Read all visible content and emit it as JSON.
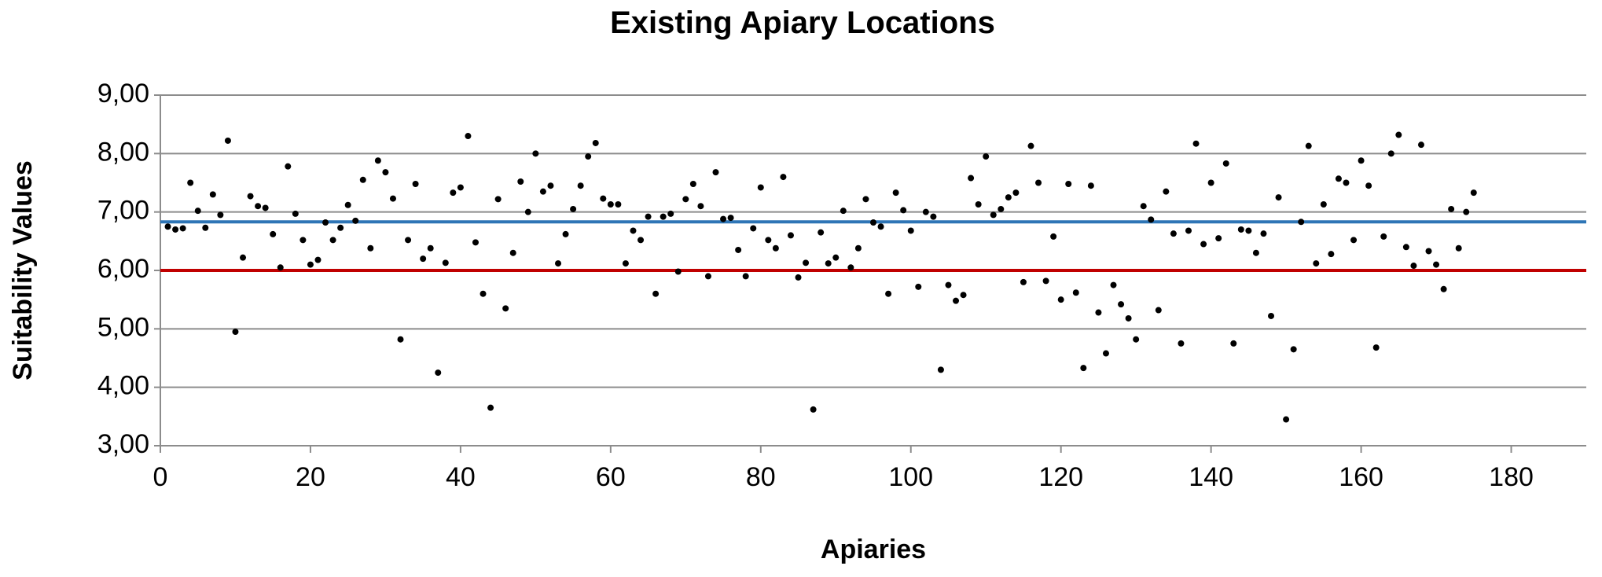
{
  "chart_data": {
    "type": "scatter",
    "title": "Existing Apiary Locations",
    "x_label": "Apiaries",
    "y_label": "Suitability Values",
    "color": "#000000",
    "grid": true,
    "xlim": [
      0,
      190
    ],
    "ylim": [
      3,
      9
    ],
    "xticks": [
      0,
      20,
      40,
      60,
      80,
      100,
      120,
      140,
      160,
      180
    ],
    "yticks": [
      {
        "value": 3,
        "label": "3,00"
      },
      {
        "value": 4,
        "label": "4,00"
      },
      {
        "value": 5,
        "label": "5,00"
      },
      {
        "value": 6,
        "label": "6,00"
      },
      {
        "value": 7,
        "label": "7,00"
      },
      {
        "value": 8,
        "label": "8,00"
      },
      {
        "value": 9,
        "label": "9,00"
      }
    ],
    "reference_lines": [
      {
        "value": 6.83,
        "color": "#2e75b6"
      },
      {
        "value": 6.0,
        "color": "#c00000"
      }
    ],
    "x": [
      1,
      2,
      3,
      4,
      5,
      6,
      7,
      8,
      9,
      10,
      11,
      12,
      13,
      14,
      15,
      16,
      17,
      18,
      19,
      20,
      21,
      22,
      23,
      24,
      25,
      26,
      27,
      28,
      29,
      30,
      31,
      32,
      33,
      34,
      35,
      36,
      37,
      38,
      39,
      40,
      41,
      42,
      43,
      44,
      45,
      46,
      47,
      48,
      49,
      50,
      51,
      52,
      53,
      54,
      55,
      56,
      57,
      58,
      59,
      60,
      61,
      62,
      63,
      64,
      65,
      66,
      67,
      68,
      69,
      70,
      71,
      72,
      73,
      74,
      75,
      76,
      77,
      78,
      79,
      80,
      81,
      82,
      83,
      84,
      85,
      86,
      87,
      88,
      89,
      90,
      91,
      92,
      93,
      94,
      95,
      96,
      97,
      98,
      99,
      100,
      101,
      102,
      103,
      104,
      105,
      106,
      107,
      108,
      109,
      110,
      111,
      112,
      113,
      114,
      115,
      116,
      117,
      118,
      119,
      120,
      121,
      122,
      123,
      124,
      125,
      126,
      127,
      128,
      129,
      130,
      131,
      132,
      133,
      134,
      135,
      136,
      137,
      138,
      139,
      140,
      141,
      142,
      143,
      144,
      145,
      146,
      147,
      148,
      149,
      150,
      151,
      152,
      153,
      154,
      155,
      156,
      157,
      158,
      159,
      160,
      161,
      162,
      163,
      164,
      165,
      166,
      167,
      168,
      169,
      170,
      171,
      172,
      173,
      174,
      175
    ],
    "values": [
      6.75,
      6.7,
      6.72,
      7.5,
      7.02,
      6.73,
      7.3,
      6.95,
      8.22,
      4.95,
      6.22,
      7.27,
      7.1,
      7.07,
      6.62,
      6.05,
      7.78,
      6.97,
      6.52,
      6.1,
      6.18,
      6.82,
      6.52,
      6.73,
      7.12,
      6.85,
      7.55,
      6.38,
      7.88,
      7.68,
      7.23,
      4.82,
      6.52,
      7.48,
      6.2,
      6.38,
      4.25,
      6.13,
      7.33,
      7.42,
      8.3,
      6.48,
      5.6,
      3.65,
      7.22,
      5.35,
      6.3,
      7.52,
      7.0,
      8.0,
      7.35,
      7.45,
      6.12,
      6.62,
      7.05,
      7.45,
      7.95,
      8.18,
      7.23,
      7.13,
      7.13,
      6.12,
      6.68,
      6.52,
      6.92,
      5.6,
      6.92,
      6.97,
      5.98,
      7.22,
      7.48,
      7.1,
      5.9,
      7.68,
      6.88,
      6.9,
      6.35,
      5.9,
      6.72,
      7.42,
      6.52,
      6.38,
      7.6,
      6.6,
      5.88,
      6.13,
      3.62,
      6.65,
      6.12,
      6.22,
      7.02,
      6.05,
      6.38,
      7.22,
      6.82,
      6.75,
      5.6,
      7.33,
      7.03,
      6.68,
      5.72,
      7.0,
      6.92,
      4.3,
      5.75,
      5.48,
      5.58,
      7.58,
      7.13,
      7.95,
      6.95,
      7.05,
      7.25,
      7.33,
      5.8,
      8.13,
      7.5,
      5.82,
      6.58,
      5.5,
      7.48,
      5.62,
      4.33,
      7.45,
      5.28,
      4.58,
      5.75,
      5.42,
      5.18,
      4.82,
      7.1,
      6.87,
      5.32,
      7.35,
      6.63,
      4.75,
      6.68,
      8.17,
      6.45,
      7.5,
      6.55,
      7.83,
      4.75,
      6.7,
      6.68,
      6.3,
      6.63,
      5.22,
      7.25,
      3.45,
      4.65,
      6.83,
      8.13,
      6.12,
      7.13,
      6.28,
      7.57,
      7.5,
      6.52,
      7.88,
      7.45,
      4.68,
      6.58,
      8.0,
      8.32,
      6.4,
      6.08,
      8.15,
      6.33,
      6.1,
      5.68,
      7.05,
      6.38,
      7.0,
      7.33
    ]
  }
}
